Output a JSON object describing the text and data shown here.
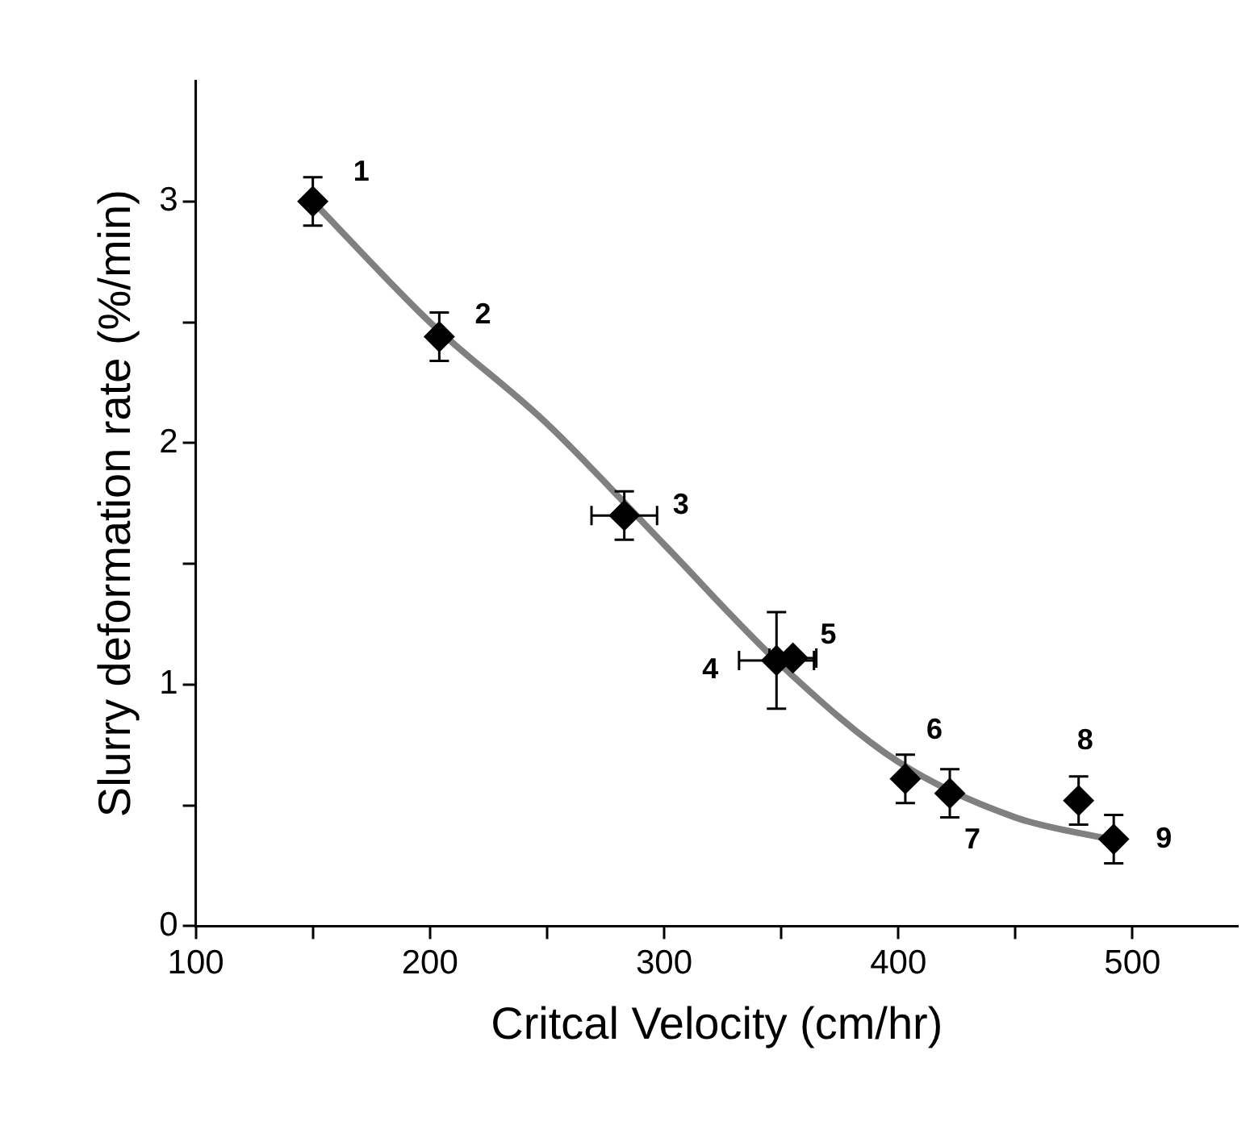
{
  "chart_data": {
    "type": "scatter",
    "xlabel": "Critcal Velocity (cm/hr)",
    "ylabel": "Slurry deformation rate (%/min)",
    "xlim": [
      100,
      545
    ],
    "xticks": [
      100,
      {
        "value": 150,
        "label": null
      },
      200,
      {
        "value": 250,
        "label": null
      },
      300,
      {
        "value": 350,
        "label": null
      },
      400,
      {
        "value": 450,
        "label": null
      },
      500
    ],
    "ylim": [
      0,
      3.5
    ],
    "yticks": [
      0,
      {
        "value": 0.5,
        "label": null
      },
      1,
      {
        "value": 1.5,
        "label": null
      },
      2,
      {
        "value": 2.5,
        "label": null
      },
      3
    ],
    "grid": false,
    "legend": false,
    "marker": "diamond",
    "series": [
      {
        "color": "#000000",
        "x": [
          150,
          204,
          283,
          348,
          355,
          403,
          422,
          477,
          492
        ],
        "values": [
          3.0,
          2.44,
          1.7,
          1.1,
          1.11,
          0.61,
          0.55,
          0.52,
          0.36
        ],
        "errors": [
          0.1,
          0.1,
          0.1,
          0.2,
          null,
          0.1,
          0.1,
          0.1,
          0.1
        ],
        "xerrors": [
          null,
          null,
          14,
          16,
          10,
          null,
          null,
          null,
          null
        ]
      },
      {
        "type": "line",
        "color": "#808080",
        "marker": "none",
        "x": [
          150,
          200,
          250,
          300,
          350,
          400,
          450,
          490
        ],
        "values": [
          3.0,
          2.5,
          2.08,
          1.58,
          1.08,
          0.68,
          0.45,
          0.36
        ]
      }
    ],
    "annotations": [
      {
        "text": "1",
        "x": 150,
        "y": 3.0
      },
      {
        "text": "2",
        "x": 204,
        "y": 2.44
      },
      {
        "text": "3",
        "x": 283,
        "y": 1.7
      },
      {
        "text": "4",
        "x": 348,
        "y": 1.1
      },
      {
        "text": "5",
        "x": 355,
        "y": 1.11
      },
      {
        "text": "6",
        "x": 403,
        "y": 0.61
      },
      {
        "text": "7",
        "x": 422,
        "y": 0.55
      },
      {
        "text": "8",
        "x": 477,
        "y": 0.52
      },
      {
        "text": "9",
        "x": 492,
        "y": 0.36
      }
    ]
  }
}
